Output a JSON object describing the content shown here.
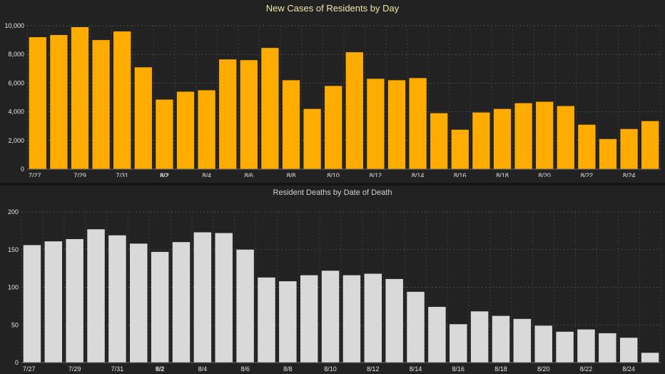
{
  "chart_data": [
    {
      "type": "bar",
      "title": "New Cases of Residents by Day",
      "xlabel": "",
      "ylabel": "",
      "ylim": [
        0,
        10000
      ],
      "y_ticks": [
        "0",
        "2,000",
        "4,000",
        "6,000",
        "8,000",
        "10,000"
      ],
      "y_tick_values": [
        0,
        2000,
        4000,
        6000,
        8000,
        10000
      ],
      "x_tick_labels": [
        "7/27",
        "7/29",
        "7/31",
        "8/2",
        "8/4",
        "8/6",
        "8/8",
        "8/10",
        "8/12",
        "8/14",
        "8/16",
        "8/18",
        "8/20",
        "8/22",
        "8/24"
      ],
      "categories": [
        "7/27",
        "7/28",
        "7/29",
        "7/30",
        "7/31",
        "8/1",
        "8/2",
        "8/3",
        "8/4",
        "8/5",
        "8/6",
        "8/7",
        "8/8",
        "8/9",
        "8/10",
        "8/11",
        "8/12",
        "8/13",
        "8/14",
        "8/15",
        "8/16",
        "8/17",
        "8/18",
        "8/19",
        "8/20",
        "8/21",
        "8/22",
        "8/23",
        "8/24",
        "8/25"
      ],
      "values": [
        9200,
        9350,
        9900,
        9000,
        9600,
        7100,
        4850,
        5400,
        5500,
        7650,
        7600,
        8450,
        6200,
        4200,
        5800,
        8150,
        6300,
        6200,
        6350,
        3900,
        2750,
        3950,
        4200,
        4600,
        4700,
        4400,
        3100,
        2100,
        2800,
        3350
      ],
      "grid": true,
      "bar_color": "#ffac00"
    },
    {
      "type": "bar",
      "title": "Resident Deaths by Date of Death",
      "xlabel": "",
      "ylabel": "",
      "ylim": [
        0,
        200
      ],
      "y_ticks": [
        "0",
        "50",
        "100",
        "150",
        "200"
      ],
      "y_tick_values": [
        0,
        50,
        100,
        150,
        200
      ],
      "x_tick_labels": [
        "7/27",
        "7/29",
        "7/31",
        "8/2",
        "8/4",
        "8/6",
        "8/8",
        "8/10",
        "8/12",
        "8/14",
        "8/16",
        "8/18",
        "8/20",
        "8/22",
        "8/24"
      ],
      "categories": [
        "7/27",
        "7/28",
        "7/29",
        "7/30",
        "7/31",
        "8/1",
        "8/2",
        "8/3",
        "8/4",
        "8/5",
        "8/6",
        "8/7",
        "8/8",
        "8/9",
        "8/10",
        "8/11",
        "8/12",
        "8/13",
        "8/14",
        "8/15",
        "8/16",
        "8/17",
        "8/18",
        "8/19",
        "8/20",
        "8/21",
        "8/22",
        "8/23",
        "8/24",
        "8/25"
      ],
      "values": [
        156,
        161,
        164,
        177,
        169,
        158,
        147,
        160,
        173,
        172,
        150,
        113,
        108,
        116,
        122,
        116,
        118,
        111,
        94,
        74,
        51,
        68,
        62,
        58,
        49,
        41,
        44,
        39,
        33,
        13
      ],
      "grid": true,
      "bar_color": "#d9d9d9"
    }
  ]
}
